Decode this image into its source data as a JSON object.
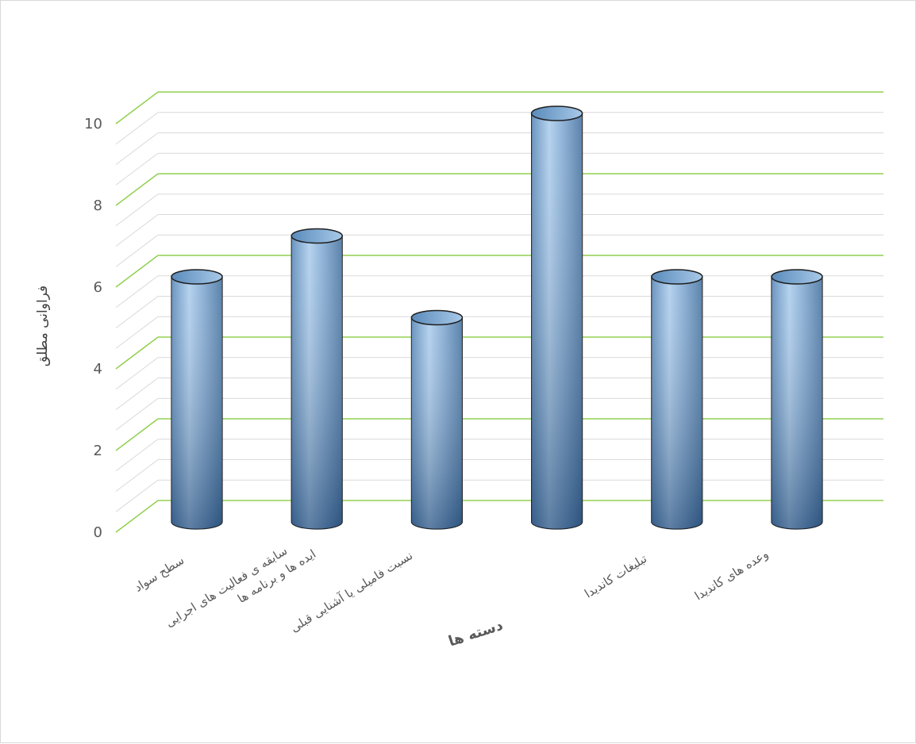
{
  "chart_data": {
    "type": "bar",
    "style": "3d-cylinder",
    "categories": [
      "سطح سواد",
      "سابقه ی فعالیت های اجرایی",
      "ایده ها و برنامه ها",
      "نسبت فامیلی یا آشنایی قبلی",
      "تبلیغات کاندیدا",
      "وعده های کاندیدا"
    ],
    "values": [
      6,
      7,
      5,
      10,
      6,
      6
    ],
    "title": "",
    "xlabel": "دسته ها",
    "ylabel": "فراوانی مطلق",
    "ylim": [
      0,
      10
    ],
    "yticks": [
      0,
      2,
      4,
      6,
      8,
      10
    ],
    "grid": true,
    "colors": {
      "bar_top": "#bcd7f0",
      "bar_mid": "#8fb7de",
      "bar_bottom": "#2f5f8f",
      "grid_major": "#92d050",
      "grid_minor": "#d9d9d9",
      "text": "#595959"
    }
  }
}
